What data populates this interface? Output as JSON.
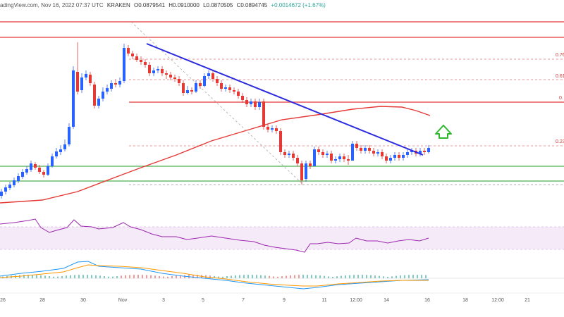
{
  "header": {
    "source": "adingView.com, Nov 16, 2022 07:37 UTC",
    "exchange": "KRAKEN",
    "open": "O0.0879541",
    "high": "H0.0910000",
    "low": "L0.0870505",
    "close": "C0.0894745",
    "change": "+0.0014672 (+1.67%)"
  },
  "colors": {
    "bull": "#2962ff",
    "bear": "#e53935",
    "trendline": "#2a2ae0",
    "sma": "#e53935",
    "support": "#4caf50",
    "resistance": "#e53935",
    "rsi": "#9c27b0",
    "macd": "#2196f3",
    "signal": "#ff9800",
    "arrow": "#2eb82e"
  },
  "chart_data": {
    "type": "candlestick",
    "x_ticks": [
      "26",
      "28",
      "30",
      "Nov",
      "3",
      "5",
      "7",
      "9",
      "11",
      "12:00",
      "14",
      "16",
      "18",
      "12:00",
      "21"
    ],
    "fib_labels": [
      "0.76",
      "0.61",
      "0.",
      "0.23"
    ],
    "annotations": [
      "upward green arrow",
      "descending blue trendline",
      "red moving average",
      "green support lines",
      "red resistance lines"
    ],
    "grid": false
  }
}
